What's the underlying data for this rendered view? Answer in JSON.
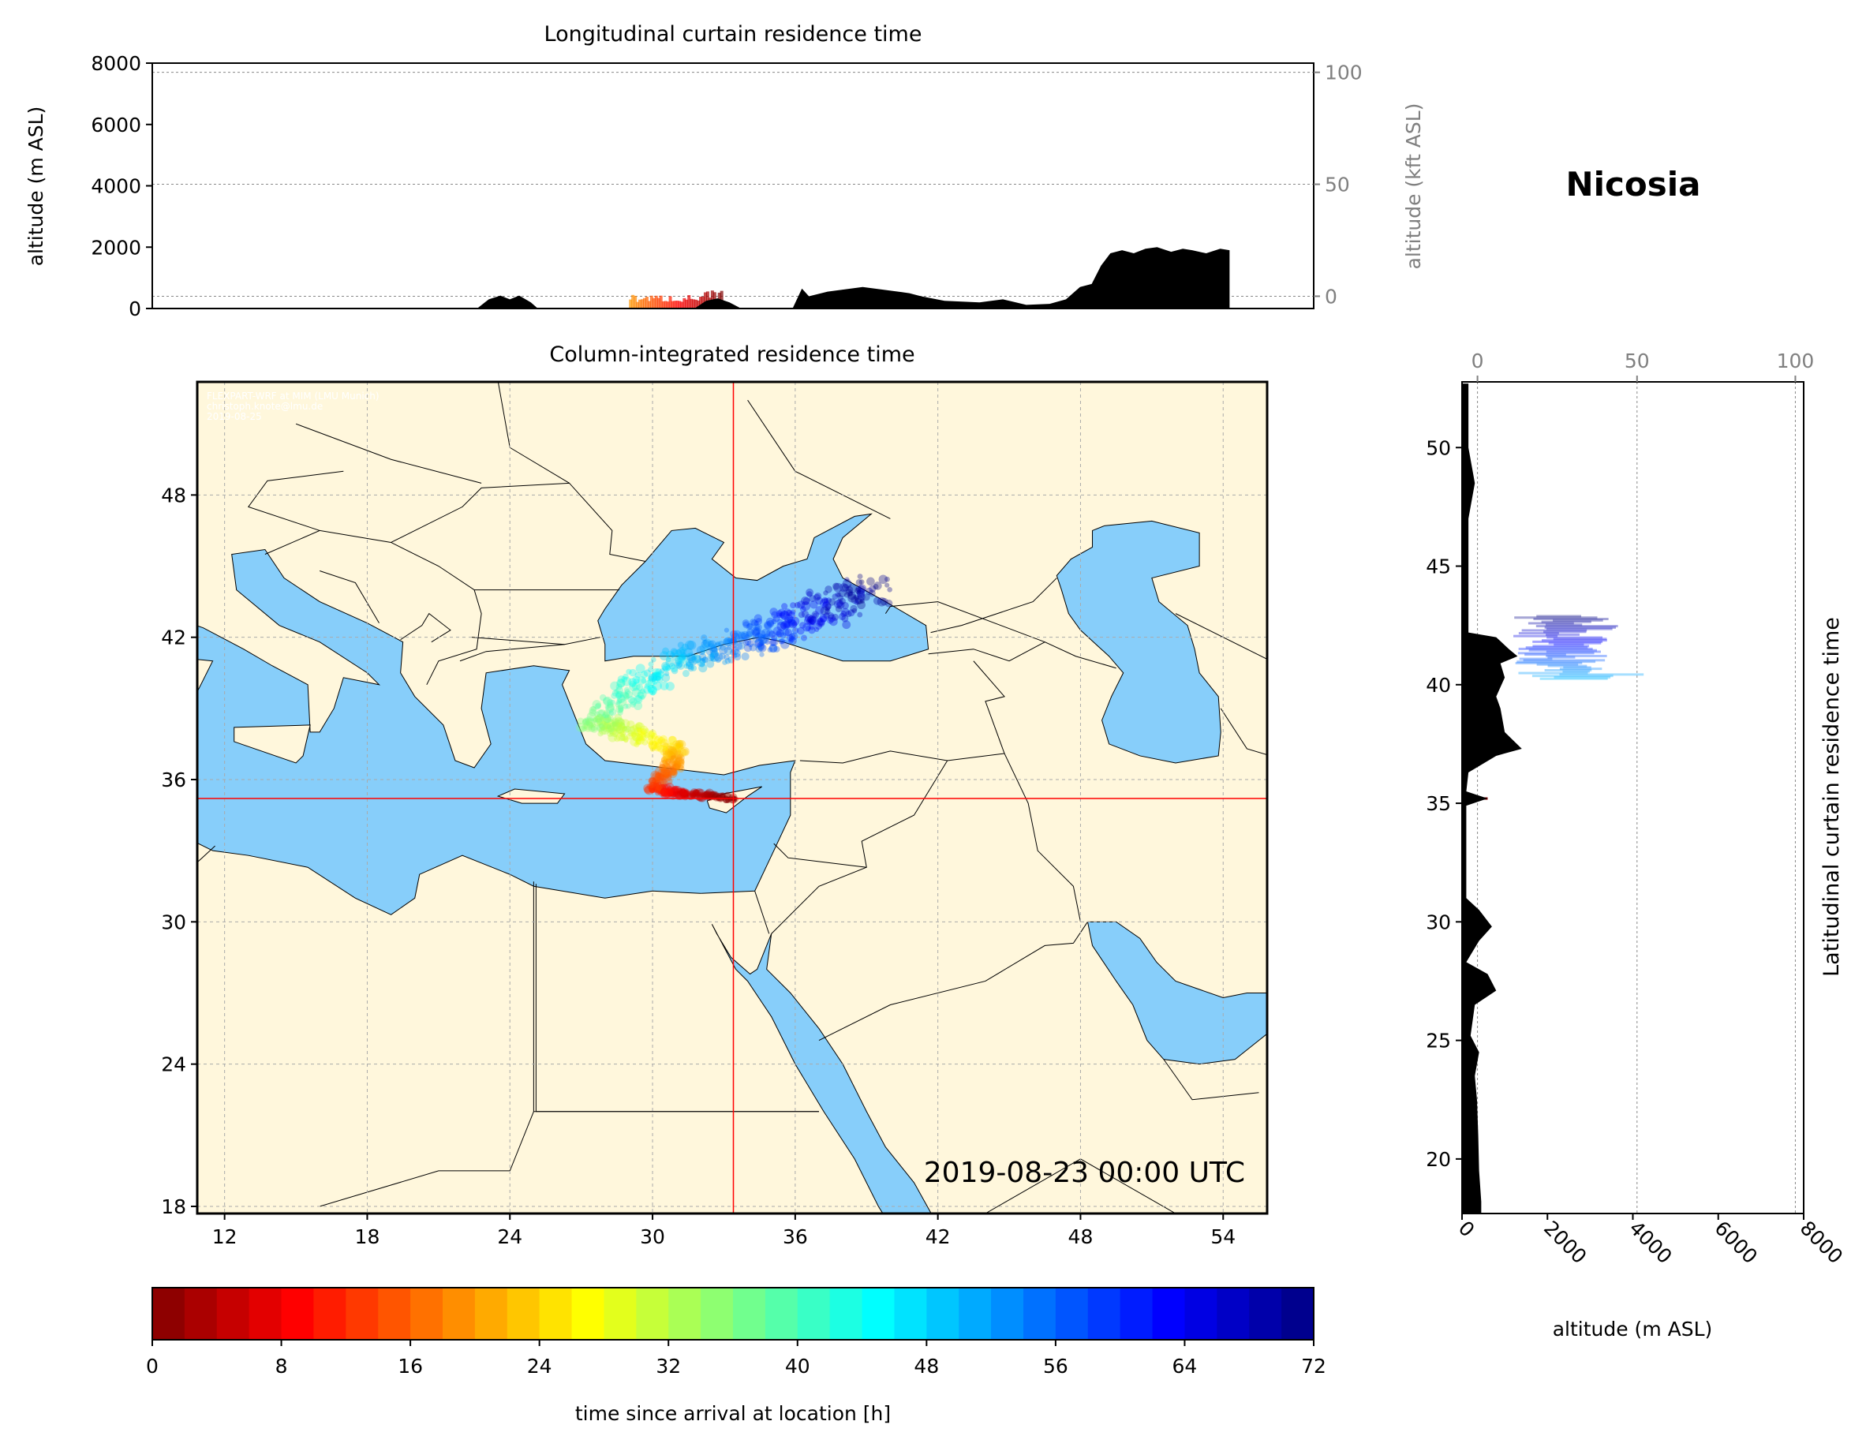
{
  "figure": {
    "location": "Nicosia"
  },
  "top_panel": {
    "title": "Longitudinal curtain residence time",
    "ylabel": "altitude (m ASL)",
    "ylabel_right": "altitude (kft ASL)",
    "yticks": [
      "0",
      "2000",
      "4000",
      "6000",
      "8000"
    ],
    "yticks_right": [
      "0",
      "50",
      "100"
    ]
  },
  "map_panel": {
    "title": "Column-integrated residence time",
    "xticks": [
      "12",
      "18",
      "24",
      "30",
      "36",
      "42",
      "48",
      "54"
    ],
    "yticks": [
      "18",
      "24",
      "30",
      "36",
      "42",
      "48"
    ],
    "timestamp": "2019-08-23 00:00 UTC",
    "credits": [
      "FLEXPART-WRF at MIM (LMU Munich)",
      "christoph.knote@lmu.de",
      "2019-08-25"
    ],
    "crosshair": {
      "lon": 33.4,
      "lat": 35.2
    },
    "colors": {
      "land": "#fff7dc",
      "sea": "#87cefa",
      "crosshair": "#ff0000"
    }
  },
  "right_panel": {
    "title": "Latitudinal curtain residence time",
    "xlabel": "altitude (m ASL)",
    "xticks": [
      "0",
      "2000",
      "4000",
      "6000",
      "8000"
    ],
    "xticks_top": [
      "0",
      "50",
      "100"
    ],
    "yticks": [
      "20",
      "25",
      "30",
      "35",
      "40",
      "45",
      "50"
    ]
  },
  "colorbar": {
    "label": "time since arrival at location [h]",
    "ticks": [
      "0",
      "8",
      "16",
      "24",
      "32",
      "40",
      "48",
      "56",
      "64",
      "72"
    ],
    "range": [
      0,
      72
    ],
    "colormap": "jet"
  }
}
